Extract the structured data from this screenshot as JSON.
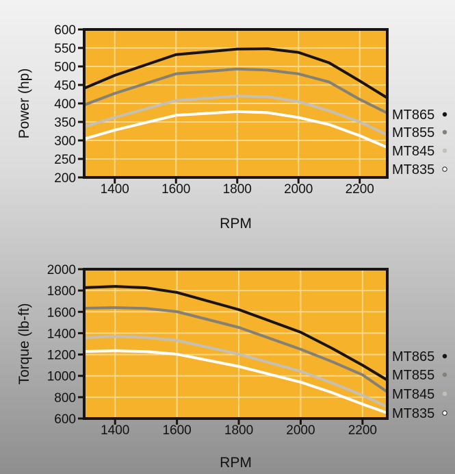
{
  "chart_data": [
    {
      "type": "line",
      "title": "",
      "xlabel": "RPM",
      "ylabel": "Power (hp)",
      "xlim": [
        1300,
        2290
      ],
      "ylim": [
        200,
        600
      ],
      "grid": true,
      "legend_position": "right",
      "x_ticks": [
        1400,
        1600,
        1800,
        2000,
        2200
      ],
      "y_ticks": [
        200,
        250,
        300,
        350,
        400,
        450,
        500,
        550,
        600
      ],
      "x": [
        1300,
        1400,
        1600,
        1800,
        1900,
        2000,
        2100,
        2200,
        2290
      ],
      "series": [
        {
          "name": "MT865",
          "color": "#1a1410",
          "values": [
            441,
            476,
            532,
            547,
            548,
            538,
            510,
            461,
            415
          ]
        },
        {
          "name": "MT855",
          "color": "#858075",
          "values": [
            396,
            427,
            480,
            493,
            490,
            480,
            458,
            411,
            374
          ]
        },
        {
          "name": "MT845",
          "color": "#c4c0b6",
          "values": [
            337,
            362,
            408,
            420,
            418,
            405,
            380,
            350,
            315
          ]
        },
        {
          "name": "MT835",
          "color": "#ffffff",
          "values": [
            304,
            328,
            368,
            378,
            375,
            362,
            343,
            313,
            281
          ]
        }
      ]
    },
    {
      "type": "line",
      "title": "",
      "xlabel": "RPM",
      "ylabel": "Torque (lb-ft)",
      "xlim": [
        1300,
        2280
      ],
      "ylim": [
        600,
        2000
      ],
      "grid": true,
      "legend_position": "right",
      "x_ticks": [
        1400,
        1600,
        1800,
        2000,
        2200
      ],
      "y_ticks": [
        600,
        800,
        1000,
        1200,
        1400,
        1600,
        1800,
        2000
      ],
      "x": [
        1300,
        1400,
        1500,
        1600,
        1800,
        2000,
        2100,
        2200,
        2280
      ],
      "series": [
        {
          "name": "MT865",
          "color": "#1a1410",
          "values": [
            1827,
            1839,
            1826,
            1782,
            1621,
            1409,
            1261,
            1100,
            960
          ]
        },
        {
          "name": "MT855",
          "color": "#858075",
          "values": [
            1634,
            1640,
            1632,
            1602,
            1454,
            1249,
            1135,
            1010,
            850
          ]
        },
        {
          "name": "MT845",
          "color": "#c4c0b6",
          "values": [
            1358,
            1370,
            1360,
            1332,
            1203,
            1043,
            935,
            818,
            709
          ]
        },
        {
          "name": "MT835",
          "color": "#ffffff",
          "values": [
            1229,
            1235,
            1228,
            1203,
            1088,
            941,
            845,
            735,
            652
          ]
        }
      ]
    }
  ],
  "colors": {
    "plot_bg": "#f5b22a",
    "grid": "#fcd88a",
    "frame": "#1a1410"
  }
}
